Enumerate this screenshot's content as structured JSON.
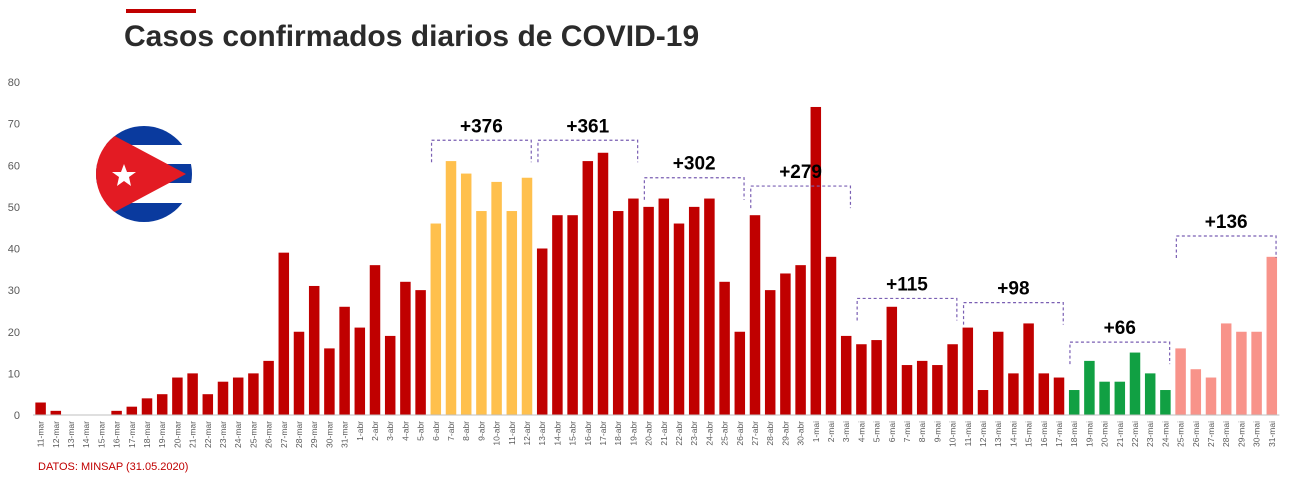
{
  "title": "Casos confirmados diarios de COVID-19",
  "source": "DATOS:  MINSAP (31.05.2020)",
  "colors": {
    "red": "#c00000",
    "yellow": "#ffc04d",
    "green": "#11a043",
    "salmon": "#f8938a",
    "bracket": "#7a5fb3",
    "axis": "#bfbfbf",
    "text": "#595959"
  },
  "flag": {
    "icon": "cuba-flag-icon"
  },
  "chart_data": {
    "type": "bar",
    "title": "Casos confirmados diarios de COVID-19",
    "xlabel": "",
    "ylabel": "",
    "ylim": [
      0,
      80
    ],
    "yticks": [
      0,
      10,
      20,
      30,
      40,
      50,
      60,
      70,
      80
    ],
    "grid": false,
    "categories": [
      "11-mar",
      "12-mar",
      "13-mar",
      "14-mar",
      "15-mar",
      "16-mar",
      "17-mar",
      "18-mar",
      "19-mar",
      "20-mar",
      "21-mar",
      "22-mar",
      "23-mar",
      "24-mar",
      "25-mar",
      "26-mar",
      "27-mar",
      "28-mar",
      "29-mar",
      "30-mar",
      "31-mar",
      "1-abr",
      "2-abr",
      "3-abr",
      "4-abr",
      "5-abr",
      "6-abr",
      "7-abr",
      "8-abr",
      "9-abr",
      "10-abr",
      "11-abr",
      "12-abr",
      "13-abr",
      "14-abr",
      "15-abr",
      "16-abr",
      "17-abr",
      "18-abr",
      "19-abr",
      "20-abr",
      "21-abr",
      "22-abr",
      "23-abr",
      "24-abr",
      "25-abr",
      "26-abr",
      "27-abr",
      "28-abr",
      "29-abr",
      "30-abr",
      "1-mai",
      "2-mai",
      "3-mai",
      "4-mai",
      "5-mai",
      "6-mai",
      "7-mai",
      "8-mai",
      "9-mai",
      "10-mai",
      "11-mai",
      "12-mai",
      "13-mai",
      "14-mai",
      "15-mai",
      "16-mai",
      "17-mai",
      "18-mai",
      "19-mai",
      "20-mai",
      "21-mai",
      "22-mai",
      "23-mai",
      "24-mai",
      "25-mai",
      "26-mai",
      "27-mai",
      "28-mai",
      "29-mai",
      "30-mai",
      "31-mai"
    ],
    "values": [
      3,
      1,
      0,
      0,
      0,
      1,
      2,
      4,
      5,
      9,
      10,
      5,
      8,
      9,
      10,
      13,
      39,
      20,
      31,
      16,
      26,
      21,
      36,
      19,
      32,
      30,
      46,
      61,
      58,
      49,
      56,
      49,
      57,
      40,
      48,
      48,
      61,
      63,
      49,
      52,
      50,
      52,
      46,
      50,
      52,
      32,
      20,
      48,
      30,
      34,
      36,
      74,
      38,
      19,
      17,
      18,
      26,
      12,
      13,
      12,
      17,
      21,
      6,
      20,
      10,
      22,
      10,
      9,
      6,
      13,
      8,
      8,
      15,
      10,
      6,
      16,
      11,
      9,
      22,
      20,
      20,
      38
    ],
    "colors": [
      "red",
      "red",
      "red",
      "red",
      "red",
      "red",
      "red",
      "red",
      "red",
      "red",
      "red",
      "red",
      "red",
      "red",
      "red",
      "red",
      "red",
      "red",
      "red",
      "red",
      "red",
      "red",
      "red",
      "red",
      "red",
      "red",
      "yellow",
      "yellow",
      "yellow",
      "yellow",
      "yellow",
      "yellow",
      "yellow",
      "red",
      "red",
      "red",
      "red",
      "red",
      "red",
      "red",
      "red",
      "red",
      "red",
      "red",
      "red",
      "red",
      "red",
      "red",
      "red",
      "red",
      "red",
      "red",
      "red",
      "red",
      "red",
      "red",
      "red",
      "red",
      "red",
      "red",
      "red",
      "red",
      "red",
      "red",
      "red",
      "red",
      "red",
      "red",
      "green",
      "green",
      "green",
      "green",
      "green",
      "green",
      "green",
      "salmon",
      "salmon",
      "salmon",
      "salmon",
      "salmon",
      "salmon",
      "salmon"
    ],
    "annotations": [
      {
        "text": "+376",
        "from": "6-abr",
        "to": "12-abr",
        "level": 66
      },
      {
        "text": "+361",
        "from": "13-abr",
        "to": "19-abr",
        "level": 66
      },
      {
        "text": "+302",
        "from": "20-abr",
        "to": "26-abr",
        "level": 57
      },
      {
        "text": "+279",
        "from": "27-abr",
        "to": "3-mai",
        "level": 55
      },
      {
        "text": "+115",
        "from": "4-mai",
        "to": "10-mai",
        "level": 28
      },
      {
        "text": "+98",
        "from": "11-mai",
        "to": "17-mai",
        "level": 27
      },
      {
        "text": "+66",
        "from": "18-mai",
        "to": "24-mai",
        "level": 17.5
      },
      {
        "text": "+136",
        "from": "25-mai",
        "to": "31-mai",
        "level": 43
      }
    ]
  }
}
